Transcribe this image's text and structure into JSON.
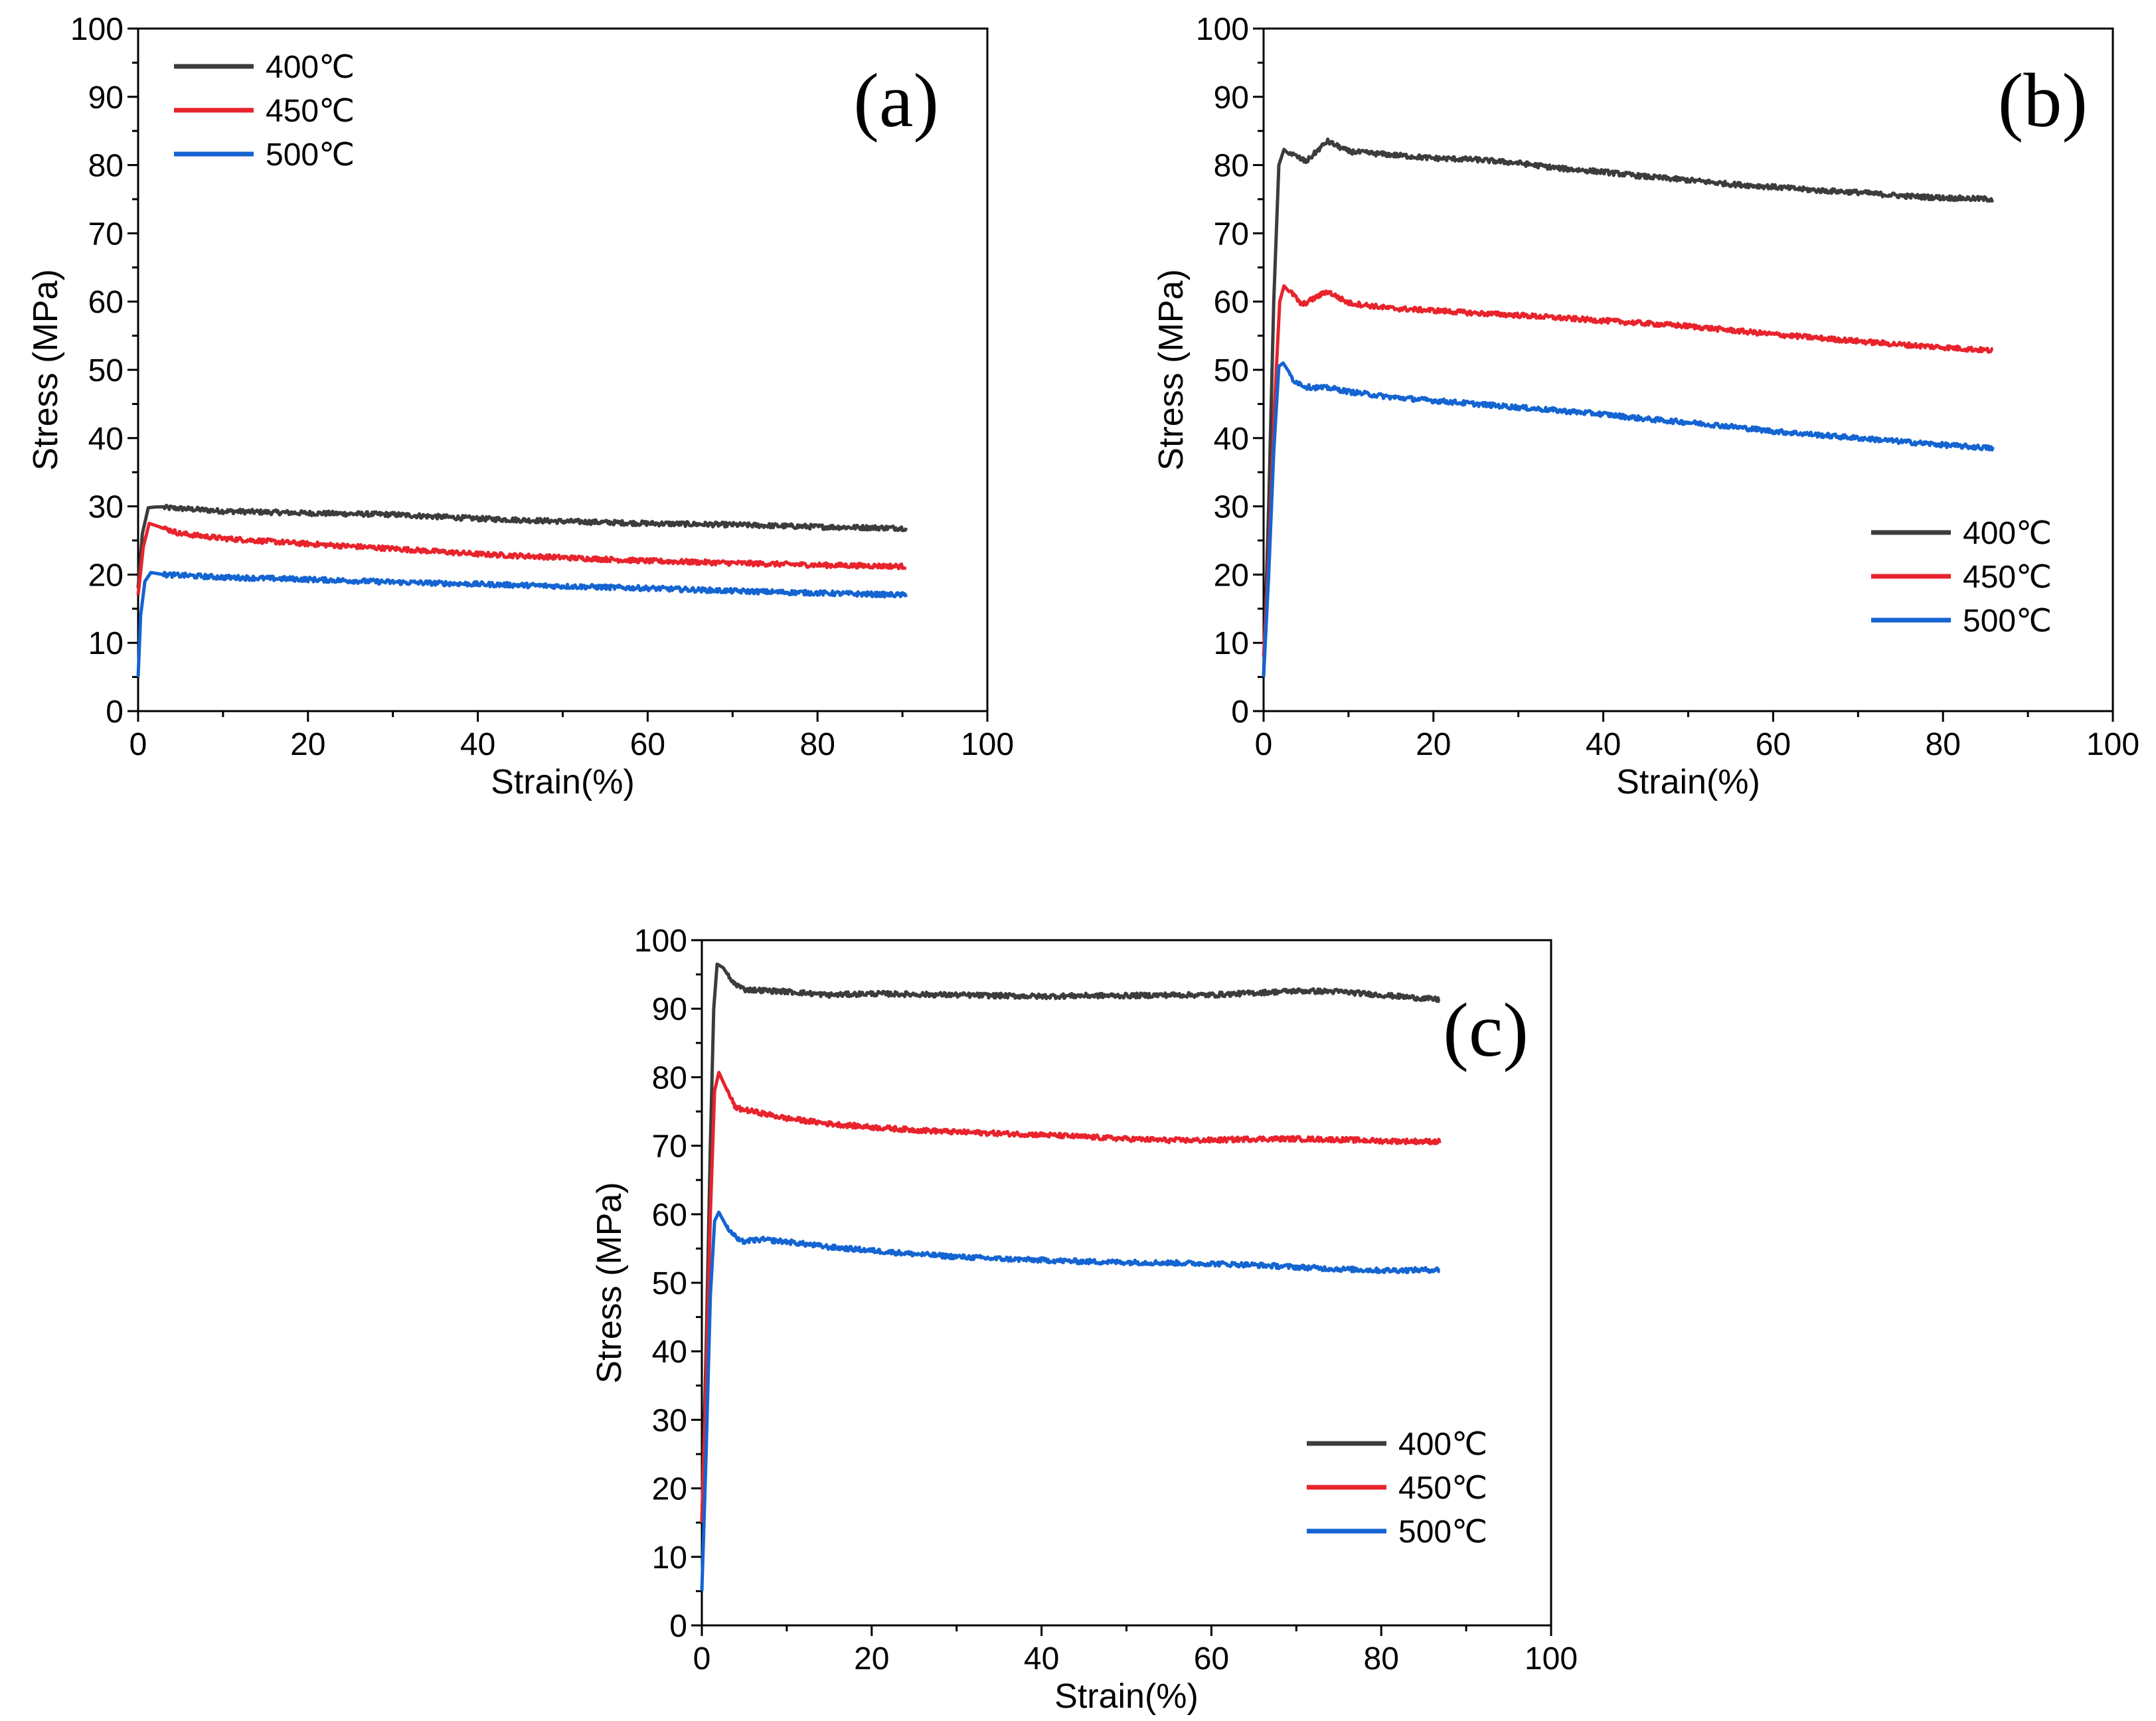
{
  "chart_data": [
    {
      "panel": "(a)",
      "type": "line",
      "xlabel": "Strain(%)",
      "ylabel": "Stress (MPa)",
      "xlim": [
        0,
        100
      ],
      "ylim": [
        0,
        100
      ],
      "xticks": [
        0,
        20,
        40,
        60,
        80,
        100
      ],
      "yticks": [
        0,
        10,
        20,
        30,
        40,
        50,
        60,
        70,
        80,
        90,
        100
      ],
      "grid": false,
      "legend_position": "top-left",
      "series": [
        {
          "name": "400℃",
          "color": "#3c3c3c",
          "points": [
            [
              0,
              18
            ],
            [
              0.5,
              26
            ],
            [
              1.2,
              29.8
            ],
            [
              2,
              29.9
            ],
            [
              10,
              29.3
            ],
            [
              20,
              29.0
            ],
            [
              30,
              28.8
            ],
            [
              40,
              28.2
            ],
            [
              50,
              27.8
            ],
            [
              60,
              27.5
            ],
            [
              70,
              27.3
            ],
            [
              80,
              27.0
            ],
            [
              90.5,
              26.8
            ]
          ]
        },
        {
          "name": "450℃",
          "color": "#e8232c",
          "points": [
            [
              0,
              17
            ],
            [
              0.6,
              24
            ],
            [
              1.3,
              27.5
            ],
            [
              2.5,
              27.0
            ],
            [
              5,
              26.0
            ],
            [
              10,
              25.3
            ],
            [
              20,
              24.5
            ],
            [
              30,
              23.8
            ],
            [
              40,
              23.0
            ],
            [
              50,
              22.5
            ],
            [
              60,
              22.0
            ],
            [
              70,
              21.7
            ],
            [
              80,
              21.4
            ],
            [
              90.5,
              21.2
            ]
          ]
        },
        {
          "name": "500℃",
          "color": "#1464d2",
          "points": [
            [
              0,
              5
            ],
            [
              0.3,
              14
            ],
            [
              0.8,
              19
            ],
            [
              1.5,
              20.3
            ],
            [
              3,
              20.0
            ],
            [
              10,
              19.6
            ],
            [
              20,
              19.3
            ],
            [
              30,
              18.9
            ],
            [
              40,
              18.6
            ],
            [
              50,
              18.3
            ],
            [
              60,
              18.0
            ],
            [
              70,
              17.6
            ],
            [
              80,
              17.3
            ],
            [
              90.5,
              17.0
            ]
          ]
        }
      ]
    },
    {
      "panel": "(b)",
      "type": "line",
      "xlabel": "Strain(%)",
      "ylabel": "Stress (MPa)",
      "xlim": [
        0,
        100
      ],
      "ylim": [
        0,
        100
      ],
      "xticks": [
        0,
        20,
        40,
        60,
        80,
        100
      ],
      "yticks": [
        0,
        10,
        20,
        30,
        40,
        50,
        60,
        70,
        80,
        90,
        100
      ],
      "grid": false,
      "legend_position": "bottom-right",
      "series": [
        {
          "name": "400℃",
          "color": "#3c3c3c",
          "points": [
            [
              0,
              5
            ],
            [
              0.6,
              30
            ],
            [
              1.2,
              60
            ],
            [
              1.8,
              80
            ],
            [
              2.4,
              82.3
            ],
            [
              3.5,
              81.5
            ],
            [
              5,
              80.5
            ],
            [
              7.5,
              83.5
            ],
            [
              10,
              82.0
            ],
            [
              15,
              81.5
            ],
            [
              20,
              81.0
            ],
            [
              25,
              80.8
            ],
            [
              30,
              80.3
            ],
            [
              35,
              79.5
            ],
            [
              40,
              79.0
            ],
            [
              45,
              78.3
            ],
            [
              50,
              77.8
            ],
            [
              55,
              77.2
            ],
            [
              60,
              76.8
            ],
            [
              65,
              76.3
            ],
            [
              70,
              76.0
            ],
            [
              75,
              75.5
            ],
            [
              80,
              75.2
            ],
            [
              86,
              75.0
            ]
          ]
        },
        {
          "name": "450℃",
          "color": "#e8232c",
          "points": [
            [
              0,
              8
            ],
            [
              0.6,
              22
            ],
            [
              1.3,
              45
            ],
            [
              1.9,
              60
            ],
            [
              2.4,
              62.3
            ],
            [
              3.5,
              61.0
            ],
            [
              4.5,
              59.5
            ],
            [
              7.5,
              61.5
            ],
            [
              10,
              59.8
            ],
            [
              15,
              59.0
            ],
            [
              20,
              58.7
            ],
            [
              25,
              58.3
            ],
            [
              30,
              58.0
            ],
            [
              35,
              57.6
            ],
            [
              40,
              57.2
            ],
            [
              45,
              56.8
            ],
            [
              50,
              56.4
            ],
            [
              55,
              55.8
            ],
            [
              60,
              55.2
            ],
            [
              65,
              54.7
            ],
            [
              70,
              54.2
            ],
            [
              75,
              53.7
            ],
            [
              80,
              53.3
            ],
            [
              86,
              52.8
            ]
          ]
        },
        {
          "name": "500℃",
          "color": "#1464d2",
          "points": [
            [
              0,
              5
            ],
            [
              0.6,
              20
            ],
            [
              1.2,
              38
            ],
            [
              1.8,
              50.5
            ],
            [
              2.3,
              51.0
            ],
            [
              3.5,
              48.5
            ],
            [
              5,
              47.5
            ],
            [
              8,
              47.3
            ],
            [
              10,
              46.8
            ],
            [
              15,
              46.0
            ],
            [
              20,
              45.5
            ],
            [
              25,
              45.0
            ],
            [
              30,
              44.5
            ],
            [
              35,
              44.0
            ],
            [
              40,
              43.5
            ],
            [
              45,
              42.8
            ],
            [
              50,
              42.3
            ],
            [
              55,
              41.7
            ],
            [
              60,
              41.0
            ],
            [
              65,
              40.5
            ],
            [
              70,
              40.0
            ],
            [
              75,
              39.5
            ],
            [
              80,
              39.0
            ],
            [
              86,
              38.5
            ]
          ]
        }
      ]
    },
    {
      "panel": "(c)",
      "type": "line",
      "xlabel": "Strain(%)",
      "ylabel": "Stress (MPa)",
      "xlim": [
        0,
        100
      ],
      "ylim": [
        0,
        100
      ],
      "xticks": [
        0,
        20,
        40,
        60,
        80,
        100
      ],
      "yticks": [
        0,
        10,
        20,
        30,
        40,
        50,
        60,
        70,
        80,
        90,
        100
      ],
      "grid": false,
      "legend_position": "bottom-right",
      "series": [
        {
          "name": "400℃",
          "color": "#3c3c3c",
          "points": [
            [
              0,
              15
            ],
            [
              0.5,
              40
            ],
            [
              1.0,
              70
            ],
            [
              1.4,
              90
            ],
            [
              1.8,
              96.5
            ],
            [
              2.5,
              96.0
            ],
            [
              3.5,
              94.0
            ],
            [
              5,
              92.8
            ],
            [
              10,
              92.5
            ],
            [
              15,
              92.0
            ],
            [
              20,
              92.2
            ],
            [
              25,
              92.1
            ],
            [
              30,
              92.0
            ],
            [
              35,
              91.9
            ],
            [
              40,
              91.8
            ],
            [
              45,
              91.9
            ],
            [
              50,
              91.9
            ],
            [
              55,
              92.0
            ],
            [
              60,
              92.0
            ],
            [
              65,
              92.3
            ],
            [
              70,
              92.6
            ],
            [
              75,
              92.5
            ],
            [
              80,
              92.0
            ],
            [
              87,
              91.3
            ]
          ]
        },
        {
          "name": "450℃",
          "color": "#e8232c",
          "points": [
            [
              0,
              15
            ],
            [
              0.5,
              35
            ],
            [
              1.0,
              60
            ],
            [
              1.5,
              78
            ],
            [
              2.0,
              80.7
            ],
            [
              3.0,
              78.0
            ],
            [
              4.0,
              75.5
            ],
            [
              6,
              75.0
            ],
            [
              10,
              74.0
            ],
            [
              15,
              73.2
            ],
            [
              20,
              72.7
            ],
            [
              25,
              72.3
            ],
            [
              30,
              72.0
            ],
            [
              35,
              71.8
            ],
            [
              40,
              71.6
            ],
            [
              45,
              71.3
            ],
            [
              50,
              71.0
            ],
            [
              55,
              70.8
            ],
            [
              60,
              70.8
            ],
            [
              65,
              71.0
            ],
            [
              70,
              71.0
            ],
            [
              75,
              70.9
            ],
            [
              80,
              70.7
            ],
            [
              87,
              70.6
            ]
          ]
        },
        {
          "name": "500℃",
          "color": "#1464d2",
          "points": [
            [
              0,
              5
            ],
            [
              0.5,
              25
            ],
            [
              1.0,
              48
            ],
            [
              1.5,
              59
            ],
            [
              2.0,
              60.3
            ],
            [
              3.0,
              58.0
            ],
            [
              4.5,
              56.0
            ],
            [
              7,
              56.3
            ],
            [
              10,
              56.0
            ],
            [
              15,
              55.2
            ],
            [
              20,
              54.7
            ],
            [
              25,
              54.2
            ],
            [
              30,
              53.8
            ],
            [
              35,
              53.5
            ],
            [
              40,
              53.3
            ],
            [
              45,
              53.1
            ],
            [
              50,
              53.0
            ],
            [
              55,
              52.9
            ],
            [
              60,
              52.8
            ],
            [
              65,
              52.6
            ],
            [
              70,
              52.3
            ],
            [
              75,
              52.0
            ],
            [
              80,
              51.8
            ],
            [
              87,
              51.9
            ]
          ]
        }
      ]
    }
  ]
}
